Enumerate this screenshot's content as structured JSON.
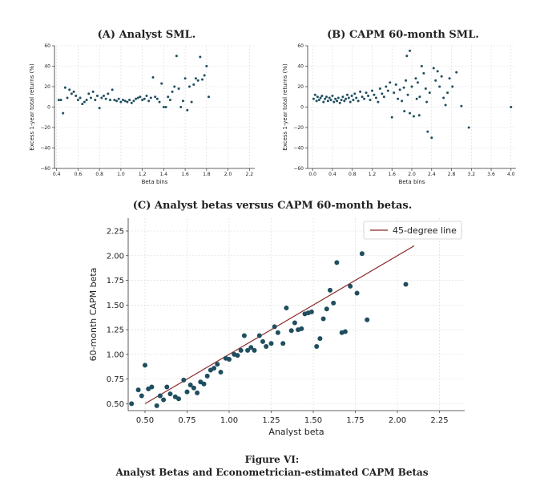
{
  "figure": {
    "label": "Figure VI:",
    "caption": "Analyst Betas and Econometrician-estimated CAPM Betas"
  },
  "colors": {
    "point": "#1f4e5f",
    "line": "#8b2a2a",
    "axis": "#333333",
    "grid": "#d8d8d8"
  },
  "chart_data": [
    {
      "id": "A",
      "type": "scatter",
      "title": "(A) Analyst SML.",
      "xlabel": "Beta bins",
      "ylabel": "Excess 1-year total returns (%)",
      "xlim": [
        0.38,
        2.25
      ],
      "ylim": [
        -60,
        60
      ],
      "xticks": [
        0.4,
        0.6,
        0.8,
        1.0,
        1.2,
        1.4,
        1.6,
        1.8,
        2.0,
        2.2
      ],
      "xtick_labels": [
        "0.4",
        "0.6",
        "0.8",
        "1.0",
        "1.2",
        "1.4",
        "1.6",
        "1.8",
        "2.0",
        "2.2"
      ],
      "yticks": [
        -60,
        -40,
        -20,
        0,
        20,
        40,
        60
      ],
      "ytick_labels": [
        "−60",
        "−40",
        "−20",
        "0",
        "20",
        "40",
        "60"
      ],
      "points": [
        [
          0.42,
          7
        ],
        [
          0.44,
          7
        ],
        [
          0.46,
          -6
        ],
        [
          0.48,
          19
        ],
        [
          0.5,
          9
        ],
        [
          0.52,
          17
        ],
        [
          0.54,
          13
        ],
        [
          0.56,
          15
        ],
        [
          0.58,
          11
        ],
        [
          0.6,
          7
        ],
        [
          0.62,
          9
        ],
        [
          0.64,
          3
        ],
        [
          0.66,
          5
        ],
        [
          0.68,
          7
        ],
        [
          0.7,
          13
        ],
        [
          0.72,
          9
        ],
        [
          0.74,
          15
        ],
        [
          0.76,
          7
        ],
        [
          0.78,
          11
        ],
        [
          0.8,
          -1
        ],
        [
          0.82,
          9
        ],
        [
          0.84,
          11
        ],
        [
          0.86,
          8
        ],
        [
          0.88,
          13
        ],
        [
          0.9,
          7
        ],
        [
          0.92,
          17
        ],
        [
          0.94,
          7
        ],
        [
          0.96,
          6
        ],
        [
          0.98,
          8
        ],
        [
          1.0,
          5
        ],
        [
          1.02,
          7
        ],
        [
          1.04,
          6
        ],
        [
          1.06,
          5
        ],
        [
          1.08,
          7
        ],
        [
          1.1,
          4
        ],
        [
          1.12,
          6
        ],
        [
          1.14,
          8
        ],
        [
          1.16,
          9
        ],
        [
          1.18,
          10
        ],
        [
          1.2,
          7
        ],
        [
          1.22,
          8
        ],
        [
          1.24,
          11
        ],
        [
          1.26,
          6
        ],
        [
          1.28,
          9
        ],
        [
          1.3,
          29
        ],
        [
          1.32,
          10
        ],
        [
          1.34,
          8
        ],
        [
          1.36,
          5
        ],
        [
          1.38,
          23
        ],
        [
          1.4,
          0
        ],
        [
          1.42,
          0
        ],
        [
          1.44,
          10
        ],
        [
          1.46,
          7
        ],
        [
          1.48,
          15
        ],
        [
          1.5,
          20
        ],
        [
          1.52,
          50
        ],
        [
          1.54,
          18
        ],
        [
          1.56,
          0
        ],
        [
          1.58,
          6
        ],
        [
          1.6,
          28
        ],
        [
          1.62,
          -3
        ],
        [
          1.64,
          20
        ],
        [
          1.66,
          5
        ],
        [
          1.68,
          22
        ],
        [
          1.7,
          28
        ],
        [
          1.72,
          26
        ],
        [
          1.74,
          49
        ],
        [
          1.76,
          27
        ],
        [
          1.78,
          31
        ],
        [
          1.8,
          40
        ],
        [
          1.82,
          10
        ]
      ]
    },
    {
      "id": "B",
      "type": "scatter",
      "title": "(B) CAPM 60-month SML.",
      "xlabel": "Beta bins",
      "ylabel": "Excess 1-year total returns (%)",
      "xlim": [
        -0.1,
        4.1
      ],
      "ylim": [
        -60,
        60
      ],
      "xticks": [
        0.0,
        0.4,
        0.8,
        1.2,
        1.6,
        2.0,
        2.4,
        2.8,
        3.2,
        3.6,
        4.0
      ],
      "xtick_labels": [
        "0.0",
        "0.4",
        "0.8",
        "1.2",
        "1.6",
        "2.0",
        "2.4",
        "2.8",
        "3.2",
        "3.6",
        "4.0"
      ],
      "yticks": [
        -60,
        -40,
        -20,
        0,
        20,
        40,
        60
      ],
      "ytick_labels": [
        "−60",
        "−40",
        "−20",
        "0",
        "20",
        "40",
        "60"
      ],
      "points": [
        [
          0.02,
          8
        ],
        [
          0.05,
          12
        ],
        [
          0.08,
          6
        ],
        [
          0.1,
          10
        ],
        [
          0.13,
          7
        ],
        [
          0.16,
          9
        ],
        [
          0.19,
          11
        ],
        [
          0.22,
          5
        ],
        [
          0.25,
          8
        ],
        [
          0.28,
          10
        ],
        [
          0.31,
          6
        ],
        [
          0.34,
          9
        ],
        [
          0.37,
          7
        ],
        [
          0.4,
          11
        ],
        [
          0.43,
          5
        ],
        [
          0.46,
          8
        ],
        [
          0.49,
          6
        ],
        [
          0.52,
          9
        ],
        [
          0.55,
          4
        ],
        [
          0.58,
          7
        ],
        [
          0.61,
          10
        ],
        [
          0.64,
          6
        ],
        [
          0.67,
          8
        ],
        [
          0.7,
          12
        ],
        [
          0.73,
          9
        ],
        [
          0.76,
          5
        ],
        [
          0.79,
          11
        ],
        [
          0.82,
          7
        ],
        [
          0.85,
          13
        ],
        [
          0.88,
          9
        ],
        [
          0.92,
          6
        ],
        [
          0.96,
          15
        ],
        [
          1.0,
          10
        ],
        [
          1.04,
          8
        ],
        [
          1.08,
          14
        ],
        [
          1.12,
          11
        ],
        [
          1.16,
          7
        ],
        [
          1.2,
          16
        ],
        [
          1.24,
          12
        ],
        [
          1.28,
          9
        ],
        [
          1.32,
          5
        ],
        [
          1.36,
          18
        ],
        [
          1.4,
          13
        ],
        [
          1.44,
          10
        ],
        [
          1.48,
          20
        ],
        [
          1.52,
          16
        ],
        [
          1.56,
          24
        ],
        [
          1.6,
          -10
        ],
        [
          1.64,
          14
        ],
        [
          1.68,
          22
        ],
        [
          1.72,
          8
        ],
        [
          1.76,
          17
        ],
        [
          1.8,
          6
        ],
        [
          1.84,
          19
        ],
        [
          1.88,
          26
        ],
        [
          1.92,
          12
        ],
        [
          1.96,
          -6
        ],
        [
          2.0,
          20
        ],
        [
          2.04,
          -9
        ],
        [
          2.08,
          28
        ],
        [
          2.12,
          24
        ],
        [
          2.16,
          10
        ],
        [
          2.2,
          40
        ],
        [
          2.24,
          33
        ],
        [
          2.28,
          18
        ],
        [
          2.32,
          -24
        ],
        [
          2.36,
          14
        ],
        [
          2.4,
          -30
        ],
        [
          2.44,
          38
        ],
        [
          2.48,
          26
        ],
        [
          2.52,
          35
        ],
        [
          2.56,
          20
        ],
        [
          2.6,
          30
        ],
        [
          2.64,
          9
        ],
        [
          2.68,
          2
        ],
        [
          2.72,
          14
        ],
        [
          2.76,
          28
        ],
        [
          2.82,
          20
        ],
        [
          2.9,
          34
        ],
        [
          3.0,
          1
        ],
        [
          3.15,
          -20
        ],
        [
          4.0,
          0
        ],
        [
          1.96,
          55
        ],
        [
          1.9,
          50
        ],
        [
          2.1,
          8
        ],
        [
          1.85,
          -4
        ],
        [
          2.15,
          -8
        ],
        [
          2.3,
          5
        ]
      ]
    },
    {
      "id": "C",
      "type": "scatter",
      "title": "(C) Analyst betas versus CAPM 60-month betas.",
      "xlabel": "Analyst beta",
      "ylabel": "60-month CAPM beta",
      "xlim": [
        0.4,
        2.4
      ],
      "ylim": [
        0.43,
        2.38
      ],
      "xticks": [
        0.5,
        0.75,
        1.0,
        1.25,
        1.5,
        1.75,
        2.0,
        2.25
      ],
      "xtick_labels": [
        "0.50",
        "0.75",
        "1.00",
        "1.25",
        "1.50",
        "1.75",
        "2.00",
        "2.25"
      ],
      "yticks": [
        0.5,
        0.75,
        1.0,
        1.25,
        1.5,
        1.75,
        2.0,
        2.25
      ],
      "ytick_labels": [
        "0.50",
        "0.75",
        "1.00",
        "1.25",
        "1.50",
        "1.75",
        "2.00",
        "2.25"
      ],
      "legend": {
        "label": "45-degree line",
        "position": "top-right"
      },
      "reference_line": [
        [
          0.5,
          0.5
        ],
        [
          2.1,
          2.1
        ]
      ],
      "points": [
        [
          0.42,
          0.5
        ],
        [
          0.46,
          0.64
        ],
        [
          0.48,
          0.58
        ],
        [
          0.5,
          0.89
        ],
        [
          0.52,
          0.65
        ],
        [
          0.54,
          0.67
        ],
        [
          0.57,
          0.48
        ],
        [
          0.59,
          0.58
        ],
        [
          0.61,
          0.54
        ],
        [
          0.63,
          0.67
        ],
        [
          0.65,
          0.6
        ],
        [
          0.68,
          0.57
        ],
        [
          0.7,
          0.55
        ],
        [
          0.73,
          0.74
        ],
        [
          0.75,
          0.62
        ],
        [
          0.77,
          0.69
        ],
        [
          0.79,
          0.66
        ],
        [
          0.81,
          0.61
        ],
        [
          0.83,
          0.72
        ],
        [
          0.85,
          0.7
        ],
        [
          0.87,
          0.78
        ],
        [
          0.89,
          0.84
        ],
        [
          0.91,
          0.86
        ],
        [
          0.93,
          0.9
        ],
        [
          0.95,
          0.82
        ],
        [
          0.98,
          0.96
        ],
        [
          1.0,
          0.95
        ],
        [
          1.03,
          1.0
        ],
        [
          1.05,
          0.99
        ],
        [
          1.07,
          1.04
        ],
        [
          1.09,
          1.19
        ],
        [
          1.11,
          1.04
        ],
        [
          1.13,
          1.07
        ],
        [
          1.15,
          1.04
        ],
        [
          1.18,
          1.19
        ],
        [
          1.2,
          1.13
        ],
        [
          1.22,
          1.08
        ],
        [
          1.25,
          1.11
        ],
        [
          1.27,
          1.28
        ],
        [
          1.29,
          1.22
        ],
        [
          1.32,
          1.11
        ],
        [
          1.34,
          1.47
        ],
        [
          1.37,
          1.24
        ],
        [
          1.39,
          1.32
        ],
        [
          1.41,
          1.25
        ],
        [
          1.43,
          1.26
        ],
        [
          1.45,
          1.41
        ],
        [
          1.47,
          1.42
        ],
        [
          1.49,
          1.43
        ],
        [
          1.52,
          1.08
        ],
        [
          1.54,
          1.16
        ],
        [
          1.56,
          1.36
        ],
        [
          1.58,
          1.46
        ],
        [
          1.6,
          1.65
        ],
        [
          1.62,
          1.52
        ],
        [
          1.64,
          1.93
        ],
        [
          1.67,
          1.22
        ],
        [
          1.69,
          1.23
        ],
        [
          1.72,
          1.69
        ],
        [
          1.76,
          1.62
        ],
        [
          1.79,
          2.02
        ],
        [
          1.82,
          1.35
        ],
        [
          2.05,
          1.71
        ]
      ]
    }
  ]
}
